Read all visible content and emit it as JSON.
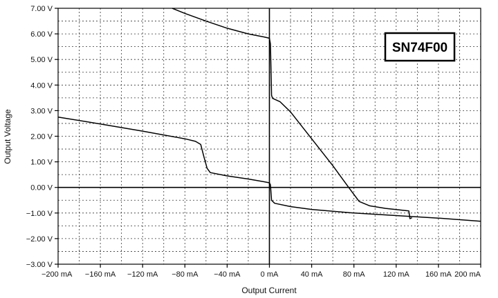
{
  "chart_data": {
    "type": "line",
    "title": "",
    "badge": "SN74F00",
    "xlabel": "Output Current",
    "ylabel": "Output Voltage",
    "xlim": [
      -200,
      200
    ],
    "ylim": [
      -3,
      7
    ],
    "x_ticks": [
      -200,
      -160,
      -120,
      -80,
      -40,
      0,
      40,
      80,
      120,
      160,
      200
    ],
    "y_ticks": [
      -3,
      -2,
      -1,
      0,
      1,
      2,
      3,
      4,
      5,
      6,
      7
    ],
    "x_tick_labels": [
      "−200 mA",
      "−160 mA",
      "−120 mA",
      "−80 mA",
      "−40 mA",
      "0 mA",
      "40 mA",
      "80 mA",
      "120 mA",
      "160 mA",
      "200 mA"
    ],
    "y_tick_labels": [
      "−3.00 V",
      "−2.00 V",
      "−1.00 V",
      "0.00 V",
      "1.00 V",
      "2.00 V",
      "3.00 V",
      "4.00 V",
      "5.00 V",
      "6.00 V",
      "7.00 V"
    ],
    "grid": true,
    "grid_minor_per_major": 2,
    "series": [
      {
        "values": [
          [
            -200,
            2.75
          ],
          [
            -160,
            2.48
          ],
          [
            -120,
            2.2
          ],
          [
            -80,
            1.9
          ],
          [
            -70,
            1.8
          ],
          [
            -65,
            1.68
          ],
          [
            -62,
            1.2
          ],
          [
            -59,
            0.75
          ],
          [
            -56,
            0.58
          ],
          [
            -40,
            0.45
          ],
          [
            -20,
            0.33
          ],
          [
            -5,
            0.22
          ],
          [
            0,
            0.18
          ],
          [
            1,
            0.1
          ],
          [
            2,
            -0.5
          ],
          [
            5,
            -0.62
          ],
          [
            20,
            -0.75
          ],
          [
            40,
            -0.86
          ],
          [
            80,
            -1.0
          ],
          [
            120,
            -1.1
          ],
          [
            160,
            -1.2
          ],
          [
            200,
            -1.32
          ]
        ]
      },
      {
        "values": [
          [
            -92,
            7.0
          ],
          [
            -80,
            6.8
          ],
          [
            -60,
            6.5
          ],
          [
            -40,
            6.22
          ],
          [
            -20,
            6.0
          ],
          [
            -5,
            5.88
          ],
          [
            0,
            5.83
          ],
          [
            1,
            5.6
          ],
          [
            2,
            3.6
          ],
          [
            3,
            3.48
          ],
          [
            10,
            3.35
          ],
          [
            20,
            2.95
          ],
          [
            40,
            1.9
          ],
          [
            60,
            0.85
          ],
          [
            75,
            0.0
          ],
          [
            85,
            -0.55
          ],
          [
            95,
            -0.72
          ],
          [
            110,
            -0.82
          ],
          [
            132,
            -0.92
          ],
          [
            133,
            -1.22
          ],
          [
            135,
            -1.18
          ]
        ]
      }
    ]
  }
}
